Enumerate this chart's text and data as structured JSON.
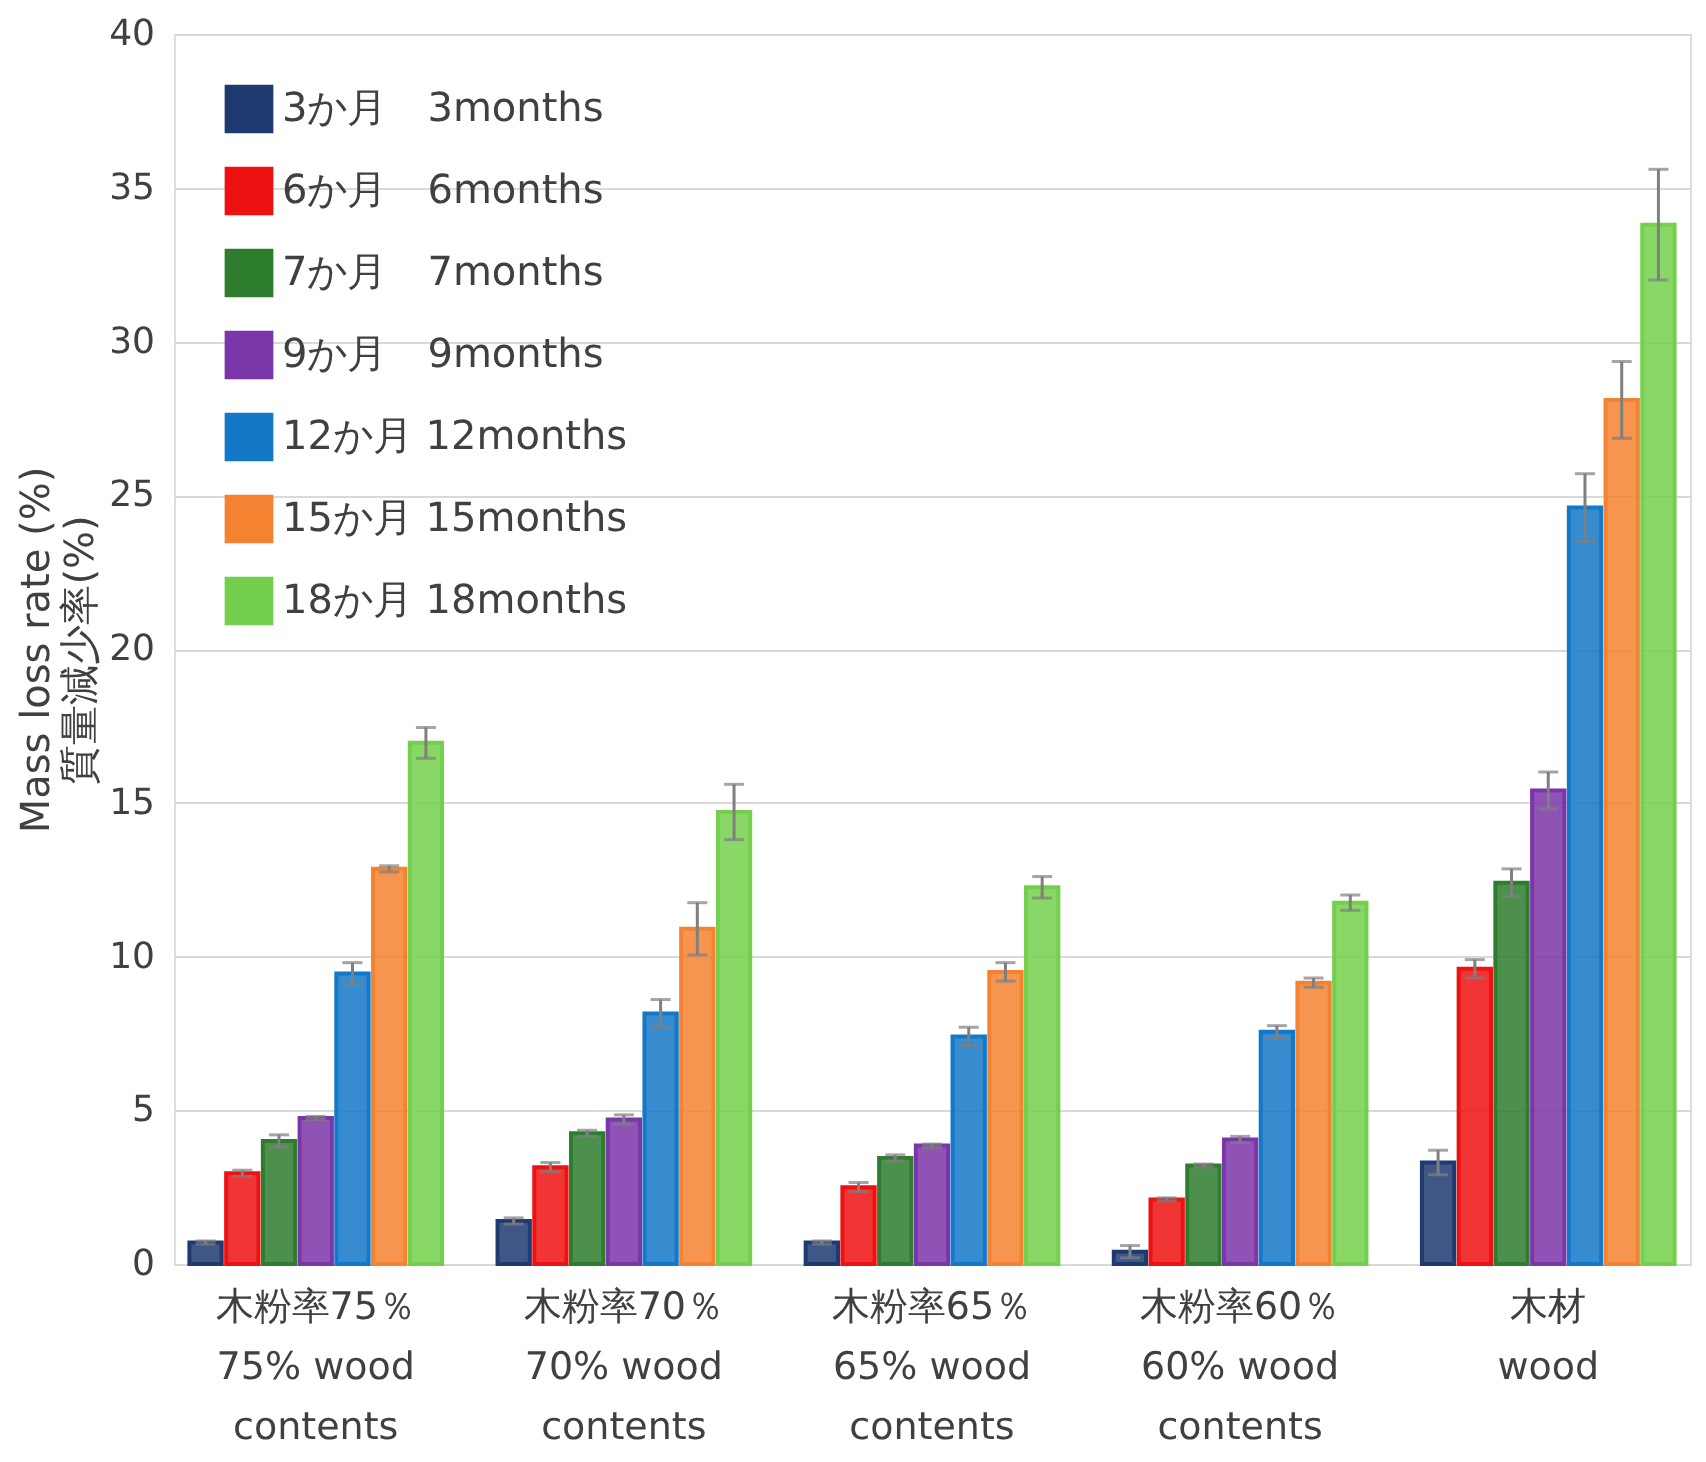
{
  "chart_data": {
    "type": "bar",
    "ylabel": "Mass loss rate (%)\n質量減少率(%)",
    "categories": [
      "木粉率75％\n75% wood\ncontents",
      "木粉率70％\n70% wood\ncontents",
      "木粉率65％\n65% wood\ncontents",
      "木粉率60％\n60% wood\ncontents",
      "木材\nwood"
    ],
    "series": [
      {
        "name": "3か月　3months",
        "color": "#1f3a70",
        "values": [
          0.7,
          1.4,
          0.7,
          0.4,
          3.3
        ],
        "errors": [
          0.05,
          0.1,
          0.05,
          0.2,
          0.4
        ]
      },
      {
        "name": "6か月　6months",
        "color": "#ee1111",
        "values": [
          2.95,
          3.15,
          2.5,
          2.1,
          9.6
        ],
        "errors": [
          0.1,
          0.15,
          0.15,
          0.05,
          0.3
        ]
      },
      {
        "name": "7か月　7months",
        "color": "#2e7d2e",
        "values": [
          4.0,
          4.25,
          3.45,
          3.2,
          12.4
        ],
        "errors": [
          0.2,
          0.1,
          0.1,
          0.05,
          0.45
        ]
      },
      {
        "name": "9か月　9months",
        "color": "#7a35a8",
        "values": [
          4.75,
          4.7,
          3.85,
          4.05,
          15.4
        ],
        "errors": [
          0.05,
          0.15,
          0.05,
          0.1,
          0.6
        ]
      },
      {
        "name": "12か月 12months",
        "color": "#1478c8",
        "values": [
          9.45,
          8.15,
          7.4,
          7.55,
          24.6
        ],
        "errors": [
          0.35,
          0.45,
          0.3,
          0.2,
          1.1
        ]
      },
      {
        "name": "15か月 15months",
        "color": "#f58231",
        "values": [
          12.85,
          10.9,
          9.5,
          9.15,
          28.1
        ],
        "errors": [
          0.1,
          0.85,
          0.3,
          0.15,
          1.25
        ]
      },
      {
        "name": "18か月 18months",
        "color": "#74d04c",
        "values": [
          16.95,
          14.7,
          12.25,
          11.75,
          33.8
        ],
        "errors": [
          0.5,
          0.9,
          0.35,
          0.25,
          1.8
        ]
      }
    ],
    "ylim": [
      0,
      40
    ],
    "yticks": [
      0,
      5,
      10,
      15,
      20,
      25,
      30,
      35,
      40
    ],
    "grid": "y",
    "legend": "top left"
  }
}
